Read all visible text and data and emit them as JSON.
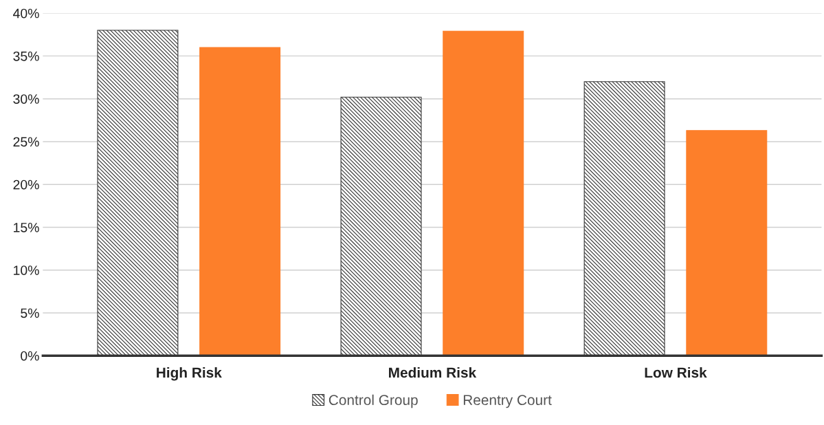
{
  "chart_data": {
    "type": "bar",
    "categories": [
      "High Risk",
      "Medium Risk",
      "Low Risk"
    ],
    "series": [
      {
        "name": "Control Group",
        "color": "#333333",
        "values": [
          38,
          30.2,
          32
        ]
      },
      {
        "name": "Reentry Court",
        "color": "#fd7f2a",
        "values": [
          36,
          37.9,
          26.3
        ]
      }
    ],
    "ylim": [
      0,
      40
    ],
    "yticks": [
      {
        "value": 0,
        "label": "0%"
      },
      {
        "value": 5,
        "label": "5%"
      },
      {
        "value": 10,
        "label": "10%"
      },
      {
        "value": 15,
        "label": "15%"
      },
      {
        "value": 20,
        "label": "20%"
      },
      {
        "value": 25,
        "label": "25%"
      },
      {
        "value": 30,
        "label": "30%"
      },
      {
        "value": 35,
        "label": "35%"
      },
      {
        "value": 40,
        "label": "40%"
      }
    ],
    "grid": "y",
    "legend": "bottom"
  }
}
